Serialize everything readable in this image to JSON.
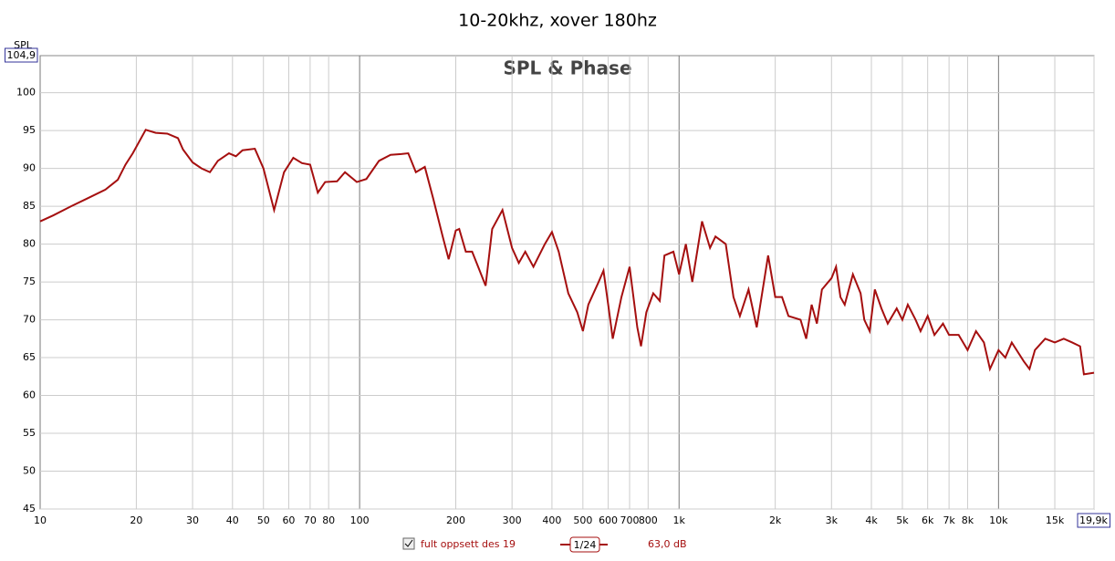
{
  "chart_data": {
    "type": "line",
    "title": "10-20khz, xover 180hz",
    "plot_label": "SPL & Phase",
    "ylabel": "SPL",
    "log_x": true,
    "grid": true,
    "xlim": [
      10,
      19900
    ],
    "ylim": [
      45,
      104.9
    ],
    "xticks": [
      10,
      20,
      30,
      40,
      50,
      60,
      70,
      80,
      100,
      200,
      300,
      400,
      500,
      600,
      700,
      800,
      {
        "value": 1000,
        "label": "1k"
      },
      {
        "value": 2000,
        "label": "2k"
      },
      {
        "value": 3000,
        "label": "3k"
      },
      {
        "value": 4000,
        "label": "4k"
      },
      {
        "value": 5000,
        "label": "5k"
      },
      {
        "value": 6000,
        "label": "6k"
      },
      {
        "value": 7000,
        "label": "7k"
      },
      {
        "value": 8000,
        "label": "8k"
      },
      {
        "value": 10000,
        "label": "10k"
      },
      {
        "value": 15000,
        "label": "15k"
      },
      {
        "value": 19900,
        "label": "19,9k"
      }
    ],
    "yticks": [
      45,
      50,
      55,
      60,
      65,
      70,
      75,
      80,
      85,
      90,
      95,
      100,
      {
        "value": 104.9,
        "label": "104,9"
      }
    ],
    "x": [
      10,
      11,
      12.5,
      14,
      16,
      17.5,
      18.5,
      19.5,
      21.4,
      23,
      25,
      27,
      28,
      30,
      32,
      34,
      36,
      39,
      41,
      43,
      47,
      50,
      54,
      58,
      62,
      66,
      70,
      74,
      78,
      85,
      90,
      98,
      105,
      115,
      125,
      135,
      142,
      150,
      160,
      170,
      182,
      190,
      200,
      205,
      215,
      225,
      235,
      248,
      260,
      280,
      300,
      315,
      330,
      350,
      380,
      400,
      420,
      450,
      480,
      500,
      520,
      560,
      580,
      600,
      620,
      660,
      700,
      740,
      760,
      790,
      830,
      870,
      900,
      960,
      1000,
      1050,
      1100,
      1180,
      1250,
      1300,
      1400,
      1480,
      1550,
      1650,
      1750,
      1900,
      2000,
      2100,
      2200,
      2400,
      2500,
      2600,
      2700,
      2800,
      3000,
      3100,
      3200,
      3300,
      3500,
      3700,
      3800,
      3950,
      4100,
      4300,
      4500,
      4800,
      5000,
      5200,
      5500,
      5700,
      6000,
      6300,
      6700,
      7000,
      7500,
      8000,
      8500,
      9000,
      9400,
      10000,
      10500,
      11000,
      12000,
      12500,
      13000,
      14000,
      15000,
      16000,
      17000,
      18000,
      18500,
      19900
    ],
    "series": [
      {
        "name": "fult oppsett des 19",
        "color": "#a50f0f",
        "smoothing": "1/24",
        "cursor_value": "63,0 dB",
        "values": [
          83.0,
          83.8,
          85,
          86,
          87.2,
          88.5,
          90.5,
          92,
          95.1,
          94.7,
          94.6,
          94,
          92.5,
          90.8,
          90,
          89.5,
          91,
          92,
          91.6,
          92.4,
          92.6,
          90,
          84.5,
          89.5,
          91.4,
          90.7,
          90.5,
          86.8,
          88.2,
          88.3,
          89.5,
          88.2,
          88.6,
          91,
          91.8,
          91.9,
          92,
          89.5,
          90.2,
          86,
          81,
          78,
          81.8,
          82,
          79,
          79,
          77,
          74.5,
          82,
          84.5,
          79.5,
          77.5,
          79,
          77,
          80,
          81.6,
          79,
          73.5,
          71,
          68.5,
          72,
          75,
          76.5,
          72,
          67.5,
          73,
          77,
          69,
          66.5,
          71,
          73.5,
          72.5,
          78.5,
          79,
          76,
          80,
          75,
          83,
          79.5,
          81,
          80,
          73,
          70.5,
          74,
          69,
          78.5,
          73,
          73,
          70.5,
          70,
          67.5,
          72,
          69.5,
          74,
          75.5,
          77,
          73,
          72,
          76,
          73.5,
          70,
          68.5,
          74,
          71.5,
          69.5,
          71.5,
          70,
          72,
          70,
          68.5,
          70.5,
          68,
          69.5,
          68,
          68,
          66,
          68.5,
          67,
          63.5,
          66,
          65,
          67,
          64.5,
          63.5,
          66,
          67.5,
          67,
          67.5,
          67,
          66.5,
          62.8,
          63
        ]
      }
    ]
  }
}
